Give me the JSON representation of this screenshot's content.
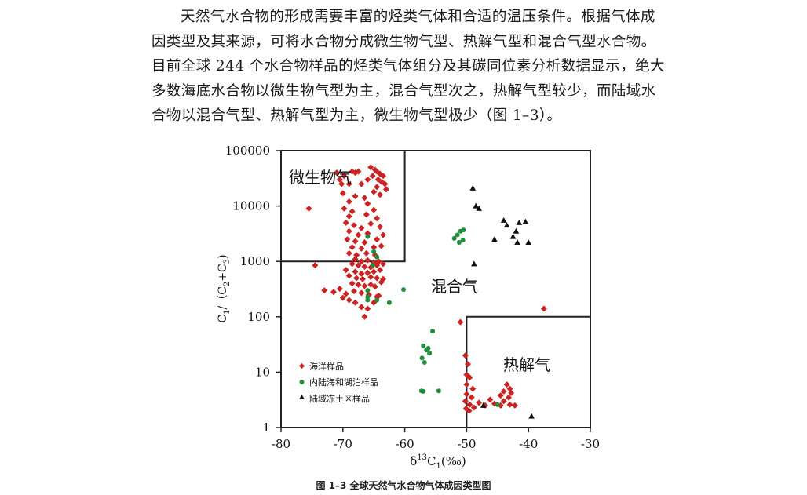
{
  "paragraph": {
    "lines": [
      "天然气水合物的形成需要丰富的烃类气体和合适的温压条件。根据气体成",
      "因类型及其来源，可将水合物分成微生物气型、热解气型和混合气型水合物。",
      "目前全球 244 个水合物样品的烃类气体组分及其碳同位素分析数据显示，绝大",
      "多数海底水合物以微生物气型为主，混合气型次之，热解气型较少，而陆域水",
      "合物以混合气型、热解气型为主，微生物气型极少（图 1–3）。"
    ]
  },
  "chart_data": {
    "type": "scatter",
    "xlabel": "δ13C1(‰)",
    "ylabel": "C1/（C2+C3)",
    "xlim": [
      -80,
      -30
    ],
    "ylim": [
      1,
      100000
    ],
    "y_scale": "log",
    "x_ticks": [
      "-80",
      "-70",
      "-60",
      "-50",
      "-40",
      "-30"
    ],
    "y_ticks": [
      "100000",
      "10000",
      "1000",
      "100",
      "10",
      "1"
    ],
    "regions": [
      {
        "label": "微生物气",
        "x": [
          -80,
          -60
        ],
        "y": [
          1000,
          100000
        ]
      },
      {
        "label": "混合气"
      },
      {
        "label": "热解气",
        "x": [
          -50,
          -30
        ],
        "y": [
          1,
          100
        ]
      }
    ],
    "legend": {
      "placement": "bottom-left",
      "entries": [
        "海洋样品",
        "内陆海和湖泊样品",
        "陆域冻土区样品"
      ]
    },
    "series": [
      {
        "name": "海洋样品",
        "marker": "diamond",
        "color": "#cc2222",
        "points": [
          [
            -75.5,
            9000
          ],
          [
            -71,
            40000
          ],
          [
            -70.5,
            30000
          ],
          [
            -69,
            25000
          ],
          [
            -68,
            40000
          ],
          [
            -67.5,
            42000
          ],
          [
            -68.5,
            42000
          ],
          [
            -69.8,
            35000
          ],
          [
            -70.2,
            25000
          ],
          [
            -65.5,
            50000
          ],
          [
            -64.8,
            45000
          ],
          [
            -64.5,
            42000
          ],
          [
            -64,
            38000
          ],
          [
            -63.5,
            35000
          ],
          [
            -65.2,
            35000
          ],
          [
            -64.3,
            30000
          ],
          [
            -63.7,
            27000
          ],
          [
            -63.2,
            25000
          ],
          [
            -64.5,
            22000
          ],
          [
            -63,
            20000
          ],
          [
            -65,
            18000
          ],
          [
            -64,
            16000
          ],
          [
            -66,
            30000
          ],
          [
            -67,
            25000
          ],
          [
            -70,
            17000
          ],
          [
            -68,
            15000
          ],
          [
            -66.5,
            14000
          ],
          [
            -69,
            12000
          ],
          [
            -66,
            11000
          ],
          [
            -69.8,
            9000
          ],
          [
            -68.5,
            8000
          ],
          [
            -66.2,
            7000
          ],
          [
            -65,
            8500
          ],
          [
            -69,
            6500
          ],
          [
            -64.5,
            6000
          ],
          [
            -69.5,
            5000
          ],
          [
            -68.2,
            4500
          ],
          [
            -67,
            4000
          ],
          [
            -65.5,
            4800
          ],
          [
            -64,
            4200
          ],
          [
            -69,
            3500
          ],
          [
            -67.5,
            3000
          ],
          [
            -66,
            3200
          ],
          [
            -63.5,
            3000
          ],
          [
            -69.3,
            2500
          ],
          [
            -68,
            2300
          ],
          [
            -66.5,
            2200
          ],
          [
            -64.5,
            2500
          ],
          [
            -68.5,
            1800
          ],
          [
            -67,
            1700
          ],
          [
            -65,
            1800
          ],
          [
            -63.8,
            1900
          ],
          [
            -69,
            1400
          ],
          [
            -67.8,
            1300
          ],
          [
            -66.2,
            1400
          ],
          [
            -64.8,
            1300
          ],
          [
            -68,
            1100
          ],
          [
            -67,
            1000
          ],
          [
            -66,
            1050
          ],
          [
            -65,
            950
          ],
          [
            -64.2,
            1000
          ],
          [
            -68.5,
            900
          ],
          [
            -67.5,
            850
          ],
          [
            -66.5,
            800
          ],
          [
            -65.5,
            780
          ],
          [
            -64.5,
            850
          ],
          [
            -63.5,
            900
          ],
          [
            -74.5,
            850
          ],
          [
            -69.5,
            700
          ],
          [
            -68,
            650
          ],
          [
            -67,
            600
          ],
          [
            -66,
            620
          ],
          [
            -65,
            650
          ],
          [
            -64,
            700
          ],
          [
            -69,
            550
          ],
          [
            -67.8,
            500
          ],
          [
            -66.8,
            480
          ],
          [
            -65.5,
            520
          ],
          [
            -64.5,
            500
          ],
          [
            -63.5,
            480
          ],
          [
            -68.5,
            400
          ],
          [
            -67.5,
            380
          ],
          [
            -66.5,
            360
          ],
          [
            -65.5,
            380
          ],
          [
            -64.8,
            350
          ],
          [
            -63.8,
            420
          ],
          [
            -73,
            300
          ],
          [
            -71.5,
            280
          ],
          [
            -70.5,
            320
          ],
          [
            -69.5,
            260
          ],
          [
            -68.2,
            290
          ],
          [
            -67,
            270
          ],
          [
            -65.8,
            250
          ],
          [
            -64.2,
            240
          ],
          [
            -70,
            220
          ],
          [
            -69,
            200
          ],
          [
            -68,
            180
          ],
          [
            -67,
            150
          ],
          [
            -66,
            140
          ],
          [
            -65,
            180
          ],
          [
            -64.5,
            230
          ],
          [
            -66.5,
            100
          ],
          [
            -51,
            80
          ],
          [
            -50.2,
            20
          ],
          [
            -49.8,
            14
          ],
          [
            -50,
            9
          ],
          [
            -49.5,
            8
          ],
          [
            -50,
            6
          ],
          [
            -49,
            5
          ],
          [
            -50,
            4
          ],
          [
            -49.2,
            3.5
          ],
          [
            -50.2,
            3
          ],
          [
            -49.5,
            2.6
          ],
          [
            -50.1,
            2.2
          ],
          [
            -49.6,
            2
          ],
          [
            -48.8,
            2.3
          ],
          [
            -48,
            2.8
          ],
          [
            -47,
            2.5
          ],
          [
            -46.2,
            3.2
          ],
          [
            -45.5,
            2.7
          ],
          [
            -44,
            4.5
          ],
          [
            -43.5,
            6
          ],
          [
            -43,
            5
          ],
          [
            -42.8,
            4.2
          ],
          [
            -44.5,
            3.8
          ],
          [
            -43.2,
            3.5
          ],
          [
            -44,
            3
          ],
          [
            -43,
            2.6
          ],
          [
            -42.2,
            2.5
          ],
          [
            -44.5,
            2.5
          ],
          [
            -37.5,
            140
          ]
        ]
      },
      {
        "name": "内陆海和湖泊样品",
        "marker": "circle",
        "color": "#1f8f3a",
        "points": [
          [
            -66,
            2800
          ],
          [
            -65,
            1500
          ],
          [
            -64.5,
            1200
          ],
          [
            -65.2,
            850
          ],
          [
            -66,
            300
          ],
          [
            -66,
            230
          ],
          [
            -66,
            200
          ],
          [
            -64.5,
            200
          ],
          [
            -62.5,
            180
          ],
          [
            -60.2,
            310
          ],
          [
            -52,
            2600
          ],
          [
            -51.5,
            3000
          ],
          [
            -51,
            3500
          ],
          [
            -50.5,
            3700
          ],
          [
            -51.2,
            2200
          ],
          [
            -50.6,
            2400
          ],
          [
            -57,
            30
          ],
          [
            -56.5,
            25
          ],
          [
            -56,
            22
          ],
          [
            -57.2,
            18
          ],
          [
            -56.8,
            15
          ],
          [
            -56.2,
            27
          ],
          [
            -55.5,
            55
          ],
          [
            -57.3,
            4.6
          ],
          [
            -57,
            4.5
          ],
          [
            -54.5,
            4.6
          ],
          [
            -45,
            2.6
          ]
        ]
      },
      {
        "name": "陆域冻土区样品",
        "marker": "triangle",
        "color": "#111111",
        "points": [
          [
            -49,
            21000
          ],
          [
            -48.5,
            10000
          ],
          [
            -48,
            9000
          ],
          [
            -44,
            5500
          ],
          [
            -43.5,
            4500
          ],
          [
            -42,
            3500
          ],
          [
            -41.5,
            5000
          ],
          [
            -40.5,
            5200
          ],
          [
            -45.5,
            2500
          ],
          [
            -42.5,
            2800
          ],
          [
            -41.8,
            2200
          ],
          [
            -40,
            2200
          ],
          [
            -48.8,
            900
          ],
          [
            -47.3,
            2.5
          ],
          [
            -39.5,
            1.6
          ]
        ]
      }
    ]
  },
  "caption": "图 1–3  全球天然气水合物气体成因类型图"
}
